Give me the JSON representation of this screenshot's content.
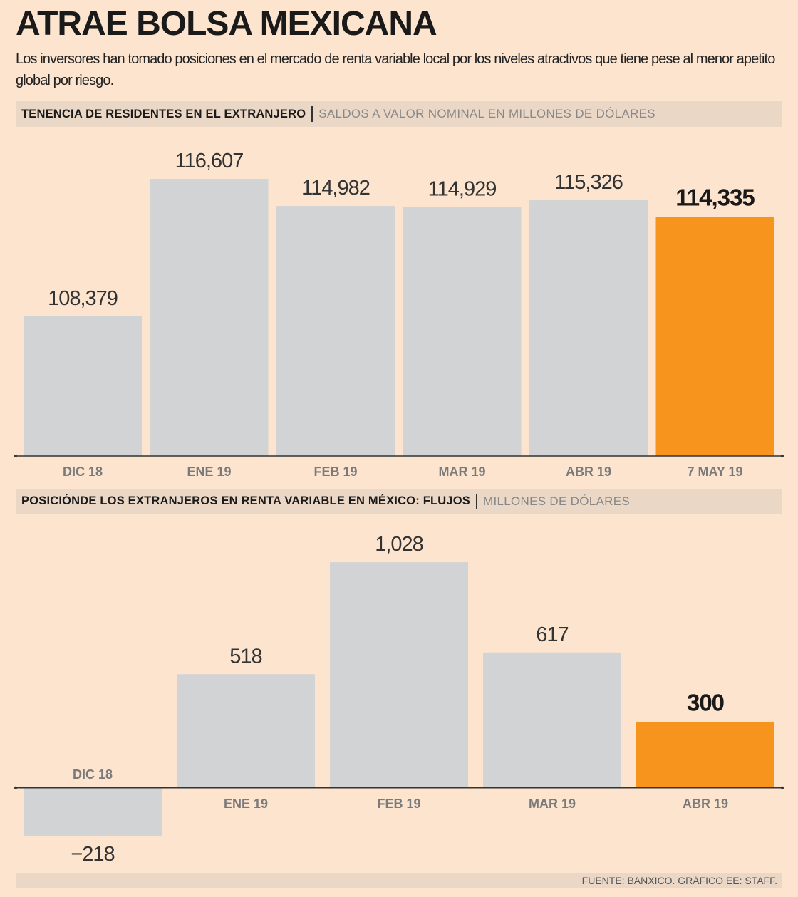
{
  "title": "ATRAE BOLSA MEXICANA",
  "subtitle": "Los inversores han tomado posiciones en el mercado de renta variable local por los niveles atractivos que tiene pese al menor apetito global por riesgo.",
  "chart_data": [
    {
      "type": "bar",
      "title": "TENENCIA DE RESIDENTES EN EL EXTRANJERO",
      "subtitle": "SALDOS A VALOR NOMINAL EN MILLONES DE DÓLARES",
      "categories": [
        "DIC 18",
        "ENE 19",
        "FEB 19",
        "MAR 19",
        "ABR 19",
        "7 MAY 19"
      ],
      "values": [
        108379,
        116607,
        114982,
        114929,
        115326,
        114335
      ],
      "value_labels": [
        "108,379",
        "116,607",
        "114,982",
        "114,929",
        "115,326",
        "114,335"
      ],
      "colors": [
        "#d1d3d4",
        "#d1d3d4",
        "#d1d3d4",
        "#d1d3d4",
        "#d1d3d4",
        "#f7941d"
      ],
      "ylim": [
        100000,
        119000
      ]
    },
    {
      "type": "bar",
      "title": "POSICIÓNDE LOS EXTRANJEROS EN RENTA VARIABLE EN MÉXICO: FLUJOS",
      "subtitle": "MILLONES DE DÓLARES",
      "categories": [
        "DIC 18",
        "ENE 19",
        "FEB 19",
        "MAR 19",
        "ABR 19"
      ],
      "values": [
        -218,
        518,
        1028,
        617,
        300
      ],
      "value_labels": [
        "−218",
        "518",
        "1,028",
        "617",
        "300"
      ],
      "colors": [
        "#d1d3d4",
        "#d1d3d4",
        "#d1d3d4",
        "#d1d3d4",
        "#f7941d"
      ],
      "ylim": [
        -400,
        1100
      ]
    }
  ],
  "source": "FUENTE: BANXICO. GRÁFICO EE: STAFF."
}
